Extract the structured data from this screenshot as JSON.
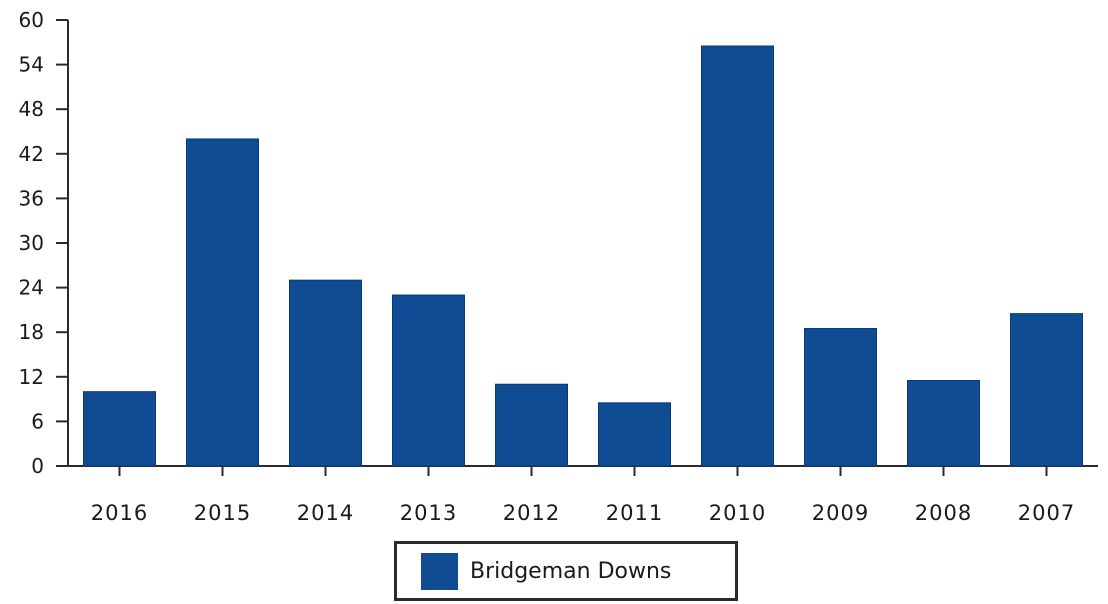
{
  "chart_data": {
    "type": "bar",
    "title": "",
    "xlabel": "",
    "ylabel": "",
    "categories": [
      "2016",
      "2015",
      "2014",
      "2013",
      "2012",
      "2011",
      "2010",
      "2009",
      "2008",
      "2007"
    ],
    "series": [
      {
        "name": "Bridgeman Downs",
        "values": [
          10,
          44,
          25,
          23,
          11,
          8.5,
          56.5,
          18.5,
          11.5,
          20.5
        ],
        "color": "#0f4c94"
      }
    ],
    "ylim": [
      0,
      60
    ],
    "yticks": [
      "0",
      "6",
      "12",
      "18",
      "24",
      "30",
      "36",
      "42",
      "48",
      "54",
      "60"
    ],
    "grid": false,
    "legend_position": "bottom-center"
  }
}
